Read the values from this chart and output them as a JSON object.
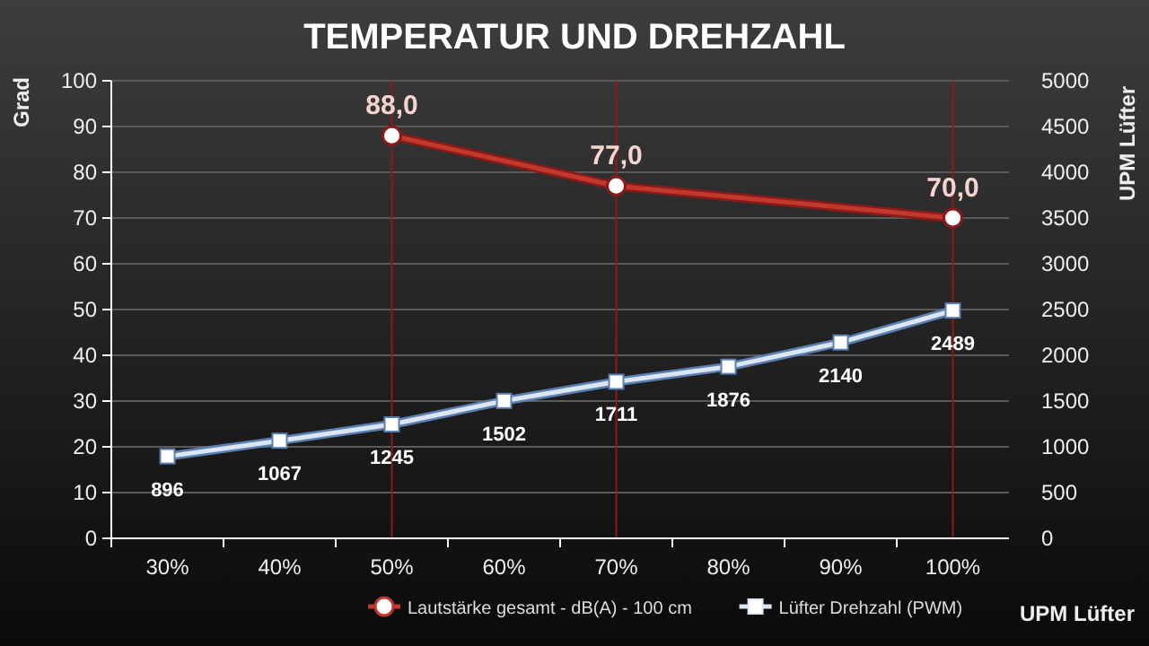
{
  "chart_data": {
    "type": "line",
    "title": "TEMPERATUR UND DREHZAHL",
    "ylabel": "Grad",
    "y2label": "UPM Lüfter",
    "xlabel": "UPM Lüfter",
    "categories": [
      "30%",
      "40%",
      "50%",
      "60%",
      "70%",
      "80%",
      "90%",
      "100%"
    ],
    "series": [
      {
        "name": "Lautstärke gesamt - dB(A) - 100 cm",
        "color": "#c0392b",
        "marker": "circle",
        "values": [
          null,
          null,
          88,
          null,
          77,
          null,
          null,
          70
        ],
        "value_labels": [
          null,
          null,
          "88,0",
          null,
          "77,0",
          null,
          null,
          "70,0"
        ]
      },
      {
        "name": "Lüfter Drehzahl (PWM)",
        "color": "#dce6f2",
        "marker": "square",
        "axis": "y2",
        "values": [
          896,
          1067,
          1245,
          1502,
          1711,
          1876,
          2140,
          2489
        ],
        "value_labels": [
          "896",
          "1067",
          "1245",
          "1502",
          "1711",
          "1876",
          "2140",
          "2489"
        ]
      }
    ],
    "ylim": [
      0,
      100
    ],
    "yticks": [
      0,
      10,
      20,
      30,
      40,
      50,
      60,
      70,
      80,
      90,
      100
    ],
    "y2lim": [
      0,
      5000
    ],
    "y2ticks": [
      0,
      500,
      1000,
      1500,
      2000,
      2500,
      3000,
      3500,
      4000,
      4500,
      5000
    ],
    "ref_lines": [
      {
        "axis": "x",
        "value": "50%",
        "color": "#8b1a1a"
      },
      {
        "axis": "x",
        "value": "70%",
        "color": "#8b1a1a"
      },
      {
        "axis": "x",
        "value": "100%",
        "color": "#8b1a1a"
      }
    ],
    "grid": "y",
    "legend": "bottom"
  }
}
